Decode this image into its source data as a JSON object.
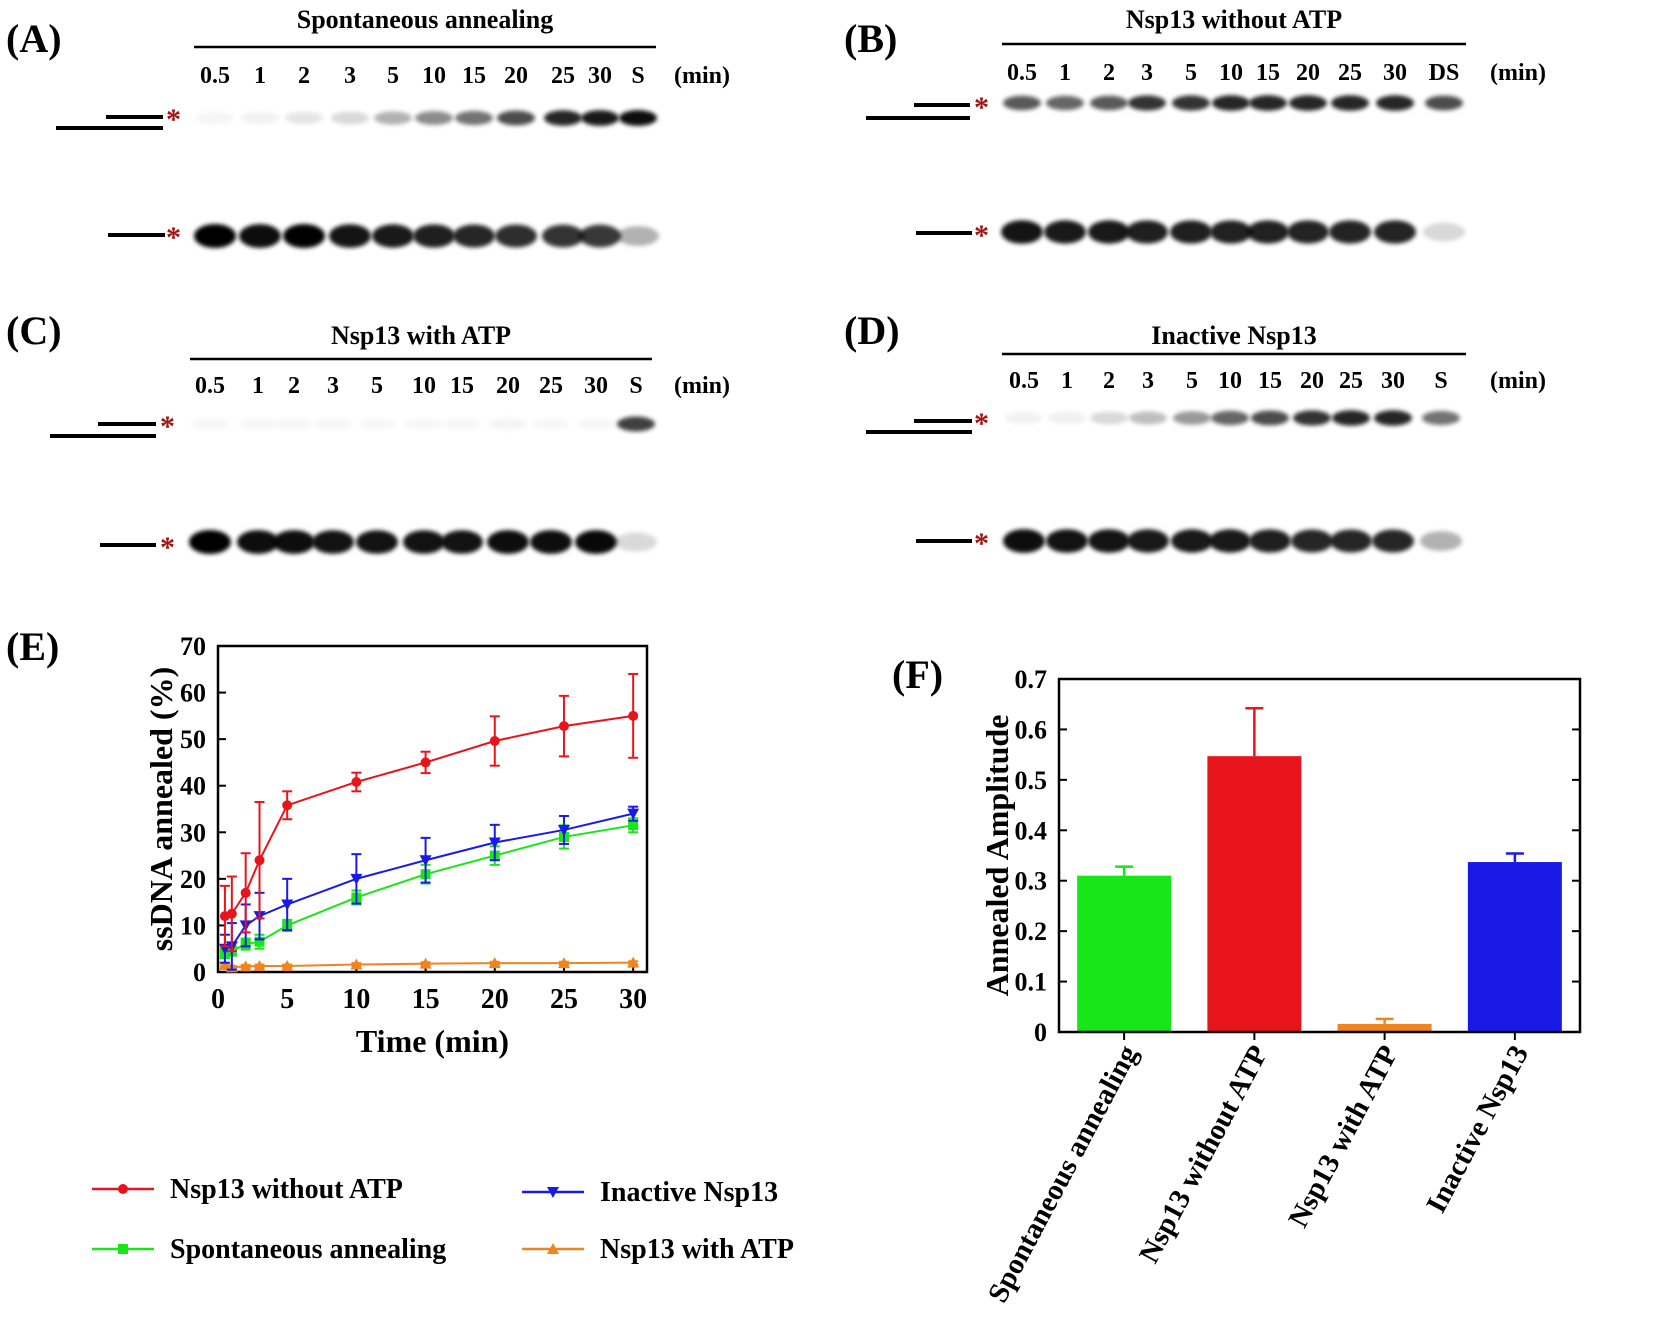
{
  "colors": {
    "red": "#e8141c",
    "green": "#19e619",
    "blue": "#1a1ae6",
    "orange": "#f0841e",
    "asterisk": "#a01414"
  },
  "panels": {
    "A": {
      "label": "(A)",
      "title": "Spontaneous annealing",
      "unit": "(min)",
      "lanes": [
        "0.5",
        "1",
        "2",
        "3",
        "5",
        "10",
        "15",
        "20",
        "25",
        "30",
        "S"
      ],
      "upper_band": [
        0.04,
        0.05,
        0.1,
        0.15,
        0.3,
        0.45,
        0.55,
        0.7,
        0.85,
        0.9,
        0.95
      ],
      "lower_band": [
        1.0,
        0.95,
        1.0,
        0.92,
        0.9,
        0.88,
        0.85,
        0.82,
        0.8,
        0.78,
        0.3
      ]
    },
    "B": {
      "label": "(B)",
      "title": "Nsp13 without ATP",
      "unit": "(min)",
      "lanes": [
        "0.5",
        "1",
        "2",
        "3",
        "5",
        "10",
        "15",
        "20",
        "25",
        "30",
        "DS"
      ],
      "upper_band": [
        0.65,
        0.6,
        0.65,
        0.8,
        0.8,
        0.85,
        0.85,
        0.85,
        0.85,
        0.85,
        0.7
      ],
      "lower_band": [
        0.92,
        0.9,
        0.9,
        0.88,
        0.88,
        0.87,
        0.87,
        0.86,
        0.86,
        0.86,
        0.15
      ]
    },
    "C": {
      "label": "(C)",
      "title": "Nsp13 with ATP",
      "unit": "(min)",
      "lanes": [
        "0.5",
        "1",
        "2",
        "3",
        "5",
        "10",
        "15",
        "20",
        "25",
        "30",
        "S"
      ],
      "upper_band": [
        0.03,
        0.02,
        0.02,
        0.02,
        0.02,
        0.03,
        0.03,
        0.04,
        0.03,
        0.03,
        0.75
      ],
      "lower_band": [
        1.0,
        0.95,
        0.95,
        0.93,
        0.93,
        0.93,
        0.93,
        0.95,
        0.95,
        0.97,
        0.15
      ]
    },
    "D": {
      "label": "(D)",
      "title": "Inactive Nsp13",
      "unit": "(min)",
      "lanes": [
        "0.5",
        "1",
        "2",
        "3",
        "5",
        "10",
        "15",
        "20",
        "25",
        "30",
        "S"
      ],
      "upper_band": [
        0.05,
        0.06,
        0.15,
        0.25,
        0.4,
        0.6,
        0.7,
        0.8,
        0.85,
        0.85,
        0.55
      ],
      "lower_band": [
        0.95,
        0.93,
        0.92,
        0.9,
        0.9,
        0.9,
        0.88,
        0.85,
        0.85,
        0.85,
        0.3
      ]
    }
  },
  "gel_marker": "*",
  "chart_data": [
    {
      "panel_label": "(E)",
      "type": "line",
      "title": "",
      "xlabel": "Time (min)",
      "ylabel": "ssDNA annealed (%)",
      "xlim": [
        0,
        31
      ],
      "ylim": [
        0,
        70
      ],
      "xticks": [
        "0",
        "5",
        "10",
        "15",
        "20",
        "25",
        "30"
      ],
      "yticks": [
        "0",
        "10",
        "20",
        "30",
        "40",
        "50",
        "60",
        "70"
      ],
      "x": [
        0.5,
        1,
        2,
        3,
        5,
        10,
        15,
        20,
        25,
        30
      ],
      "series": [
        {
          "name": "Nsp13 without ATP",
          "color": "red",
          "marker": "circle",
          "values": [
            12,
            12.5,
            17,
            24,
            35.8,
            40.8,
            45,
            49.6,
            52.8,
            55
          ],
          "errors": [
            6.5,
            8,
            8.5,
            12.5,
            3,
            2,
            2.3,
            5.3,
            6.5,
            9
          ]
        },
        {
          "name": "Inactive Nsp13",
          "color": "blue",
          "marker": "triangle-down",
          "values": [
            5,
            5.5,
            10,
            12,
            14.5,
            20,
            24,
            27.8,
            30.5,
            34
          ],
          "errors": [
            3,
            5,
            4.5,
            5,
            5.5,
            5.3,
            4.8,
            3.8,
            3,
            1.5
          ]
        },
        {
          "name": "Spontaneous annealing",
          "color": "green",
          "marker": "square",
          "values": [
            4,
            4.5,
            6,
            6.5,
            10,
            16,
            21,
            25,
            29,
            31.5
          ],
          "errors": [
            1,
            1,
            1.2,
            1.5,
            1.2,
            1.5,
            2,
            2,
            2.5,
            1.5
          ]
        },
        {
          "name": "Nsp13 with ATP",
          "color": "orange",
          "marker": "triangle-up",
          "values": [
            1.5,
            1,
            1.2,
            1.3,
            1.3,
            1.6,
            1.8,
            1.9,
            1.9,
            2
          ],
          "errors": [
            0.3,
            0.3,
            0.3,
            0.3,
            0.3,
            0.3,
            0.3,
            0.3,
            0.3,
            0.3
          ]
        }
      ],
      "legend": [
        {
          "name": "Nsp13 without ATP",
          "color": "red",
          "marker": "circle"
        },
        {
          "name": "Inactive Nsp13",
          "color": "blue",
          "marker": "triangle-down"
        },
        {
          "name": "Spontaneous annealing",
          "color": "green",
          "marker": "square"
        },
        {
          "name": "Nsp13 with ATP",
          "color": "orange",
          "marker": "triangle-up"
        }
      ],
      "legend_position": "below"
    },
    {
      "panel_label": "(F)",
      "type": "bar",
      "title": "",
      "xlabel": "",
      "ylabel": "Annealed Amplitude",
      "ylim": [
        0,
        0.7
      ],
      "yticks": [
        "0",
        "0.1",
        "0.2",
        "0.3",
        "0.4",
        "0.5",
        "0.6",
        "0.7"
      ],
      "categories": [
        "Spontaneous annealing",
        "Nsp13 without ATP",
        "Nsp13 with ATP",
        "Inactive Nsp13"
      ],
      "values": [
        0.31,
        0.547,
        0.016,
        0.337
      ],
      "errors": [
        0.018,
        0.095,
        0.01,
        0.017
      ],
      "bar_colors": [
        "green",
        "red",
        "orange",
        "blue"
      ]
    }
  ]
}
